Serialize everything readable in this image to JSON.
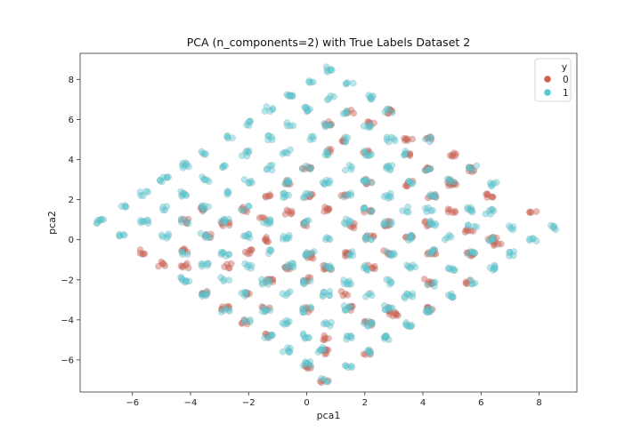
{
  "chart_data": {
    "type": "scatter",
    "title": "PCA (n_components=2) with True Labels Dataset 2",
    "xlabel": "pca1",
    "ylabel": "pca2",
    "xlim": [
      -7.8,
      9.3
    ],
    "ylim": [
      -7.6,
      9.3
    ],
    "xticks": [
      -6,
      -4,
      -2,
      0,
      2,
      4,
      6,
      8
    ],
    "yticks": [
      -6,
      -4,
      -2,
      0,
      2,
      4,
      6,
      8
    ],
    "grid": false,
    "legend": {
      "title": "y",
      "placement": "top-right",
      "entries": [
        {
          "label": "0",
          "color": "#d2604f"
        },
        {
          "label": "1",
          "color": "#56cad5"
        }
      ]
    },
    "series": [
      {
        "name": "0",
        "color": "#d2604f",
        "points": [
          [
            0.7,
            5.8
          ],
          [
            1.5,
            6.4
          ],
          [
            2.2,
            5.8
          ],
          [
            2.8,
            6.4
          ],
          [
            3.5,
            5.0
          ],
          [
            4.2,
            5.0
          ],
          [
            5.0,
            4.2
          ],
          [
            0.0,
            3.6
          ],
          [
            0.7,
            4.4
          ],
          [
            1.3,
            5.0
          ],
          [
            2.0,
            4.4
          ],
          [
            3.5,
            4.3
          ],
          [
            4.2,
            3.5
          ],
          [
            5.0,
            2.8
          ],
          [
            5.7,
            3.5
          ],
          [
            -0.6,
            2.9
          ],
          [
            0.1,
            2.2
          ],
          [
            1.3,
            2.2
          ],
          [
            2.1,
            2.9
          ],
          [
            3.5,
            2.8
          ],
          [
            4.3,
            2.2
          ],
          [
            5.0,
            2.9
          ],
          [
            6.3,
            2.2
          ],
          [
            -2.1,
            1.5
          ],
          [
            -1.3,
            2.2
          ],
          [
            -0.6,
            1.4
          ],
          [
            0.7,
            1.5
          ],
          [
            2.1,
            1.5
          ],
          [
            2.8,
            0.8
          ],
          [
            4.1,
            0.8
          ],
          [
            5.0,
            1.4
          ],
          [
            7.8,
            1.3
          ],
          [
            -4.2,
            0.9
          ],
          [
            -3.5,
            1.5
          ],
          [
            -2.8,
            0.8
          ],
          [
            -1.4,
            0.0
          ],
          [
            -0.1,
            0.8
          ],
          [
            1.5,
            0.7
          ],
          [
            2.2,
            0.1
          ],
          [
            3.5,
            0.1
          ],
          [
            5.6,
            0.5
          ],
          [
            6.4,
            0.0
          ],
          [
            6.6,
            -0.2
          ],
          [
            -5.6,
            -0.6
          ],
          [
            -4.2,
            -0.5
          ],
          [
            -3.4,
            0.2
          ],
          [
            -2.0,
            -0.6
          ],
          [
            0.1,
            -0.8
          ],
          [
            1.4,
            -0.7
          ],
          [
            2.8,
            -0.6
          ],
          [
            4.3,
            -0.6
          ],
          [
            5.6,
            -0.7
          ],
          [
            -5.0,
            -1.2
          ],
          [
            -4.2,
            -1.3
          ],
          [
            -2.7,
            -1.3
          ],
          [
            -0.7,
            -1.4
          ],
          [
            0.7,
            -1.4
          ],
          [
            2.2,
            -1.4
          ],
          [
            4.2,
            -2.1
          ],
          [
            5.6,
            -2.1
          ],
          [
            -3.5,
            -2.7
          ],
          [
            -2.0,
            -2.7
          ],
          [
            -1.3,
            -2.1
          ],
          [
            0.0,
            -2.0
          ],
          [
            1.3,
            -2.7
          ],
          [
            2.8,
            -3.5
          ],
          [
            4.3,
            -3.5
          ],
          [
            -2.8,
            -3.4
          ],
          [
            -1.4,
            -3.4
          ],
          [
            0.0,
            -3.5
          ],
          [
            1.5,
            -3.4
          ],
          [
            2.1,
            -4.2
          ],
          [
            3.0,
            -3.7
          ],
          [
            -2.1,
            -4.1
          ],
          [
            -1.3,
            -4.8
          ],
          [
            0.7,
            -4.9
          ],
          [
            2.1,
            -5.6
          ],
          [
            0.6,
            -5.6
          ],
          [
            0.0,
            -6.3
          ],
          [
            0.6,
            -7.0
          ],
          [
            -1.5,
            1.1
          ]
        ]
      },
      {
        "name": "1",
        "color": "#56cad5",
        "points": [
          [
            0.8,
            8.5
          ],
          [
            0.1,
            7.9
          ],
          [
            1.5,
            7.8
          ],
          [
            -0.6,
            7.2
          ],
          [
            0.8,
            7.1
          ],
          [
            2.2,
            7.1
          ],
          [
            -1.3,
            6.5
          ],
          [
            0.0,
            6.5
          ],
          [
            1.4,
            6.4
          ],
          [
            2.8,
            6.4
          ],
          [
            -2.0,
            5.8
          ],
          [
            -0.6,
            5.8
          ],
          [
            0.7,
            5.7
          ],
          [
            2.1,
            5.7
          ],
          [
            -2.7,
            5.1
          ],
          [
            -1.3,
            5.1
          ],
          [
            0.1,
            5.1
          ],
          [
            1.4,
            5.0
          ],
          [
            2.9,
            5.0
          ],
          [
            4.2,
            5.0
          ],
          [
            -4.2,
            3.7
          ],
          [
            -3.5,
            4.3
          ],
          [
            -2.1,
            4.3
          ],
          [
            -0.7,
            4.4
          ],
          [
            0.7,
            4.3
          ],
          [
            2.1,
            4.3
          ],
          [
            3.5,
            4.3
          ],
          [
            -4.9,
            3.0
          ],
          [
            -3.5,
            3.0
          ],
          [
            -2.8,
            3.6
          ],
          [
            -1.3,
            3.6
          ],
          [
            0.0,
            3.6
          ],
          [
            1.4,
            3.6
          ],
          [
            2.8,
            3.6
          ],
          [
            4.2,
            3.5
          ],
          [
            5.7,
            3.6
          ],
          [
            -5.6,
            2.3
          ],
          [
            -4.2,
            2.3
          ],
          [
            -2.8,
            2.3
          ],
          [
            -2.0,
            2.9
          ],
          [
            -0.7,
            2.9
          ],
          [
            0.7,
            2.9
          ],
          [
            2.1,
            2.9
          ],
          [
            2.8,
            2.2
          ],
          [
            3.5,
            2.9
          ],
          [
            4.3,
            2.2
          ],
          [
            5.0,
            2.9
          ],
          [
            6.4,
            2.8
          ],
          [
            -6.3,
            1.6
          ],
          [
            -4.9,
            1.6
          ],
          [
            -3.5,
            1.6
          ],
          [
            -2.1,
            1.6
          ],
          [
            -0.7,
            2.2
          ],
          [
            0.0,
            2.2
          ],
          [
            1.4,
            2.2
          ],
          [
            2.1,
            1.5
          ],
          [
            3.4,
            1.5
          ],
          [
            4.2,
            1.5
          ],
          [
            5.6,
            1.5
          ],
          [
            6.3,
            1.4
          ],
          [
            -7.1,
            0.9
          ],
          [
            -5.6,
            0.9
          ],
          [
            -4.2,
            0.9
          ],
          [
            -2.8,
            0.9
          ],
          [
            -1.4,
            0.9
          ],
          [
            0.0,
            0.9
          ],
          [
            1.4,
            0.9
          ],
          [
            2.8,
            0.8
          ],
          [
            4.3,
            0.8
          ],
          [
            5.7,
            0.7
          ],
          [
            7.1,
            0.6
          ],
          [
            8.5,
            0.6
          ],
          [
            -6.3,
            0.2
          ],
          [
            -4.9,
            0.2
          ],
          [
            -3.5,
            0.2
          ],
          [
            -2.1,
            0.2
          ],
          [
            -0.7,
            0.1
          ],
          [
            0.7,
            0.1
          ],
          [
            2.1,
            0.1
          ],
          [
            3.5,
            0.1
          ],
          [
            4.9,
            0.1
          ],
          [
            6.4,
            0.0
          ],
          [
            7.8,
            0.0
          ],
          [
            -4.2,
            -0.6
          ],
          [
            -2.8,
            -0.7
          ],
          [
            -1.3,
            -0.6
          ],
          [
            0.1,
            -0.7
          ],
          [
            1.5,
            -0.7
          ],
          [
            2.9,
            -0.7
          ],
          [
            4.3,
            -0.6
          ],
          [
            5.7,
            -0.7
          ],
          [
            7.1,
            -0.7
          ],
          [
            -3.5,
            -1.3
          ],
          [
            -2.0,
            -1.3
          ],
          [
            -0.6,
            -1.3
          ],
          [
            0.7,
            -1.4
          ],
          [
            2.1,
            -1.4
          ],
          [
            3.6,
            -1.4
          ],
          [
            5.0,
            -1.4
          ],
          [
            6.4,
            -1.4
          ],
          [
            -4.2,
            -2.0
          ],
          [
            -2.8,
            -2.0
          ],
          [
            -1.4,
            -2.1
          ],
          [
            0.0,
            -2.1
          ],
          [
            1.4,
            -2.1
          ],
          [
            2.8,
            -2.1
          ],
          [
            4.3,
            -2.2
          ],
          [
            5.7,
            -2.1
          ],
          [
            -3.5,
            -2.7
          ],
          [
            -2.1,
            -2.7
          ],
          [
            -0.7,
            -2.7
          ],
          [
            0.7,
            -2.7
          ],
          [
            2.1,
            -2.8
          ],
          [
            3.5,
            -2.8
          ],
          [
            4.9,
            -2.8
          ],
          [
            -2.8,
            -3.5
          ],
          [
            -1.4,
            -3.5
          ],
          [
            0.0,
            -3.5
          ],
          [
            1.4,
            -3.4
          ],
          [
            2.8,
            -3.4
          ],
          [
            4.2,
            -3.5
          ],
          [
            -2.1,
            -4.1
          ],
          [
            -0.7,
            -4.1
          ],
          [
            0.7,
            -4.2
          ],
          [
            2.1,
            -4.2
          ],
          [
            3.5,
            -4.2
          ],
          [
            -1.3,
            -4.8
          ],
          [
            0.0,
            -4.8
          ],
          [
            1.4,
            -4.9
          ],
          [
            2.8,
            -4.9
          ],
          [
            -0.7,
            -5.5
          ],
          [
            0.5,
            -5.5
          ],
          [
            2.1,
            -5.6
          ],
          [
            0.0,
            -6.2
          ],
          [
            1.4,
            -6.3
          ],
          [
            0.6,
            -7.0
          ]
        ]
      }
    ]
  }
}
